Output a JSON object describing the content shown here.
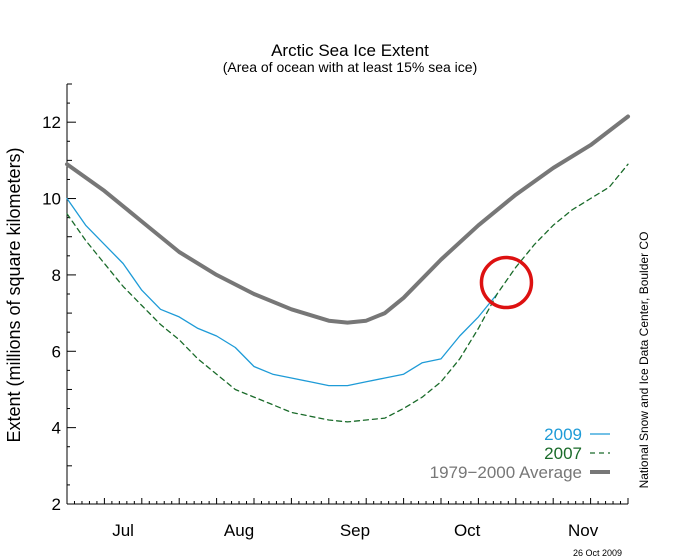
{
  "chart_data": {
    "type": "line",
    "title": "Arctic Sea Ice Extent",
    "subtitle": "(Area of ocean with at least 15% sea ice)",
    "ylabel": "Extent (millions of square kilometers)",
    "xlabel": "",
    "ylim": [
      2,
      13
    ],
    "xlim": [
      0,
      150
    ],
    "yticks": [
      2,
      4,
      6,
      8,
      10,
      12
    ],
    "months": [
      {
        "label": "Jul",
        "x": 15
      },
      {
        "label": "Aug",
        "x": 46
      },
      {
        "label": "Sep",
        "x": 77
      },
      {
        "label": "Oct",
        "x": 107
      },
      {
        "label": "Nov",
        "x": 138
      }
    ],
    "grid": false,
    "legend_position": "bottom-right",
    "series": [
      {
        "name": "1979−2000 Average",
        "color": "#777777",
        "style": "solid-thick",
        "x": [
          0,
          10,
          20,
          30,
          40,
          50,
          60,
          70,
          75,
          80,
          85,
          90,
          100,
          110,
          120,
          130,
          140,
          150
        ],
        "y": [
          10.9,
          10.2,
          9.4,
          8.6,
          8.0,
          7.5,
          7.1,
          6.8,
          6.75,
          6.8,
          7.0,
          7.4,
          8.4,
          9.3,
          10.1,
          10.8,
          11.4,
          12.15
        ]
      },
      {
        "name": "2009",
        "color": "#1e9bd7",
        "style": "solid",
        "x": [
          0,
          5,
          10,
          15,
          20,
          25,
          30,
          35,
          40,
          45,
          50,
          55,
          60,
          65,
          70,
          75,
          80,
          85,
          90,
          95,
          100,
          105,
          110,
          115
        ],
        "y": [
          10.0,
          9.3,
          8.8,
          8.3,
          7.6,
          7.1,
          6.9,
          6.6,
          6.4,
          6.1,
          5.6,
          5.4,
          5.3,
          5.2,
          5.1,
          5.1,
          5.2,
          5.3,
          5.4,
          5.7,
          5.8,
          6.4,
          6.9,
          7.5
        ]
      },
      {
        "name": "2007",
        "color": "#1a6b2a",
        "style": "dashed",
        "x": [
          0,
          5,
          10,
          15,
          20,
          25,
          30,
          35,
          40,
          45,
          50,
          55,
          60,
          65,
          70,
          75,
          80,
          85,
          90,
          95,
          100,
          105,
          110,
          115,
          120,
          125,
          130,
          135,
          140,
          145,
          150
        ],
        "y": [
          9.6,
          8.9,
          8.3,
          7.7,
          7.2,
          6.7,
          6.3,
          5.8,
          5.4,
          5.0,
          4.8,
          4.6,
          4.4,
          4.3,
          4.2,
          4.15,
          4.2,
          4.25,
          4.5,
          4.8,
          5.2,
          5.8,
          6.6,
          7.5,
          8.2,
          8.8,
          9.3,
          9.7,
          10.0,
          10.3,
          10.9
        ]
      }
    ],
    "annotation": {
      "type": "circle",
      "color": "#dd1111",
      "x": 117.5,
      "y": 7.8
    }
  },
  "credit": "National Snow and Ice Data Center, Boulder CO",
  "date": "26 Oct 2009"
}
